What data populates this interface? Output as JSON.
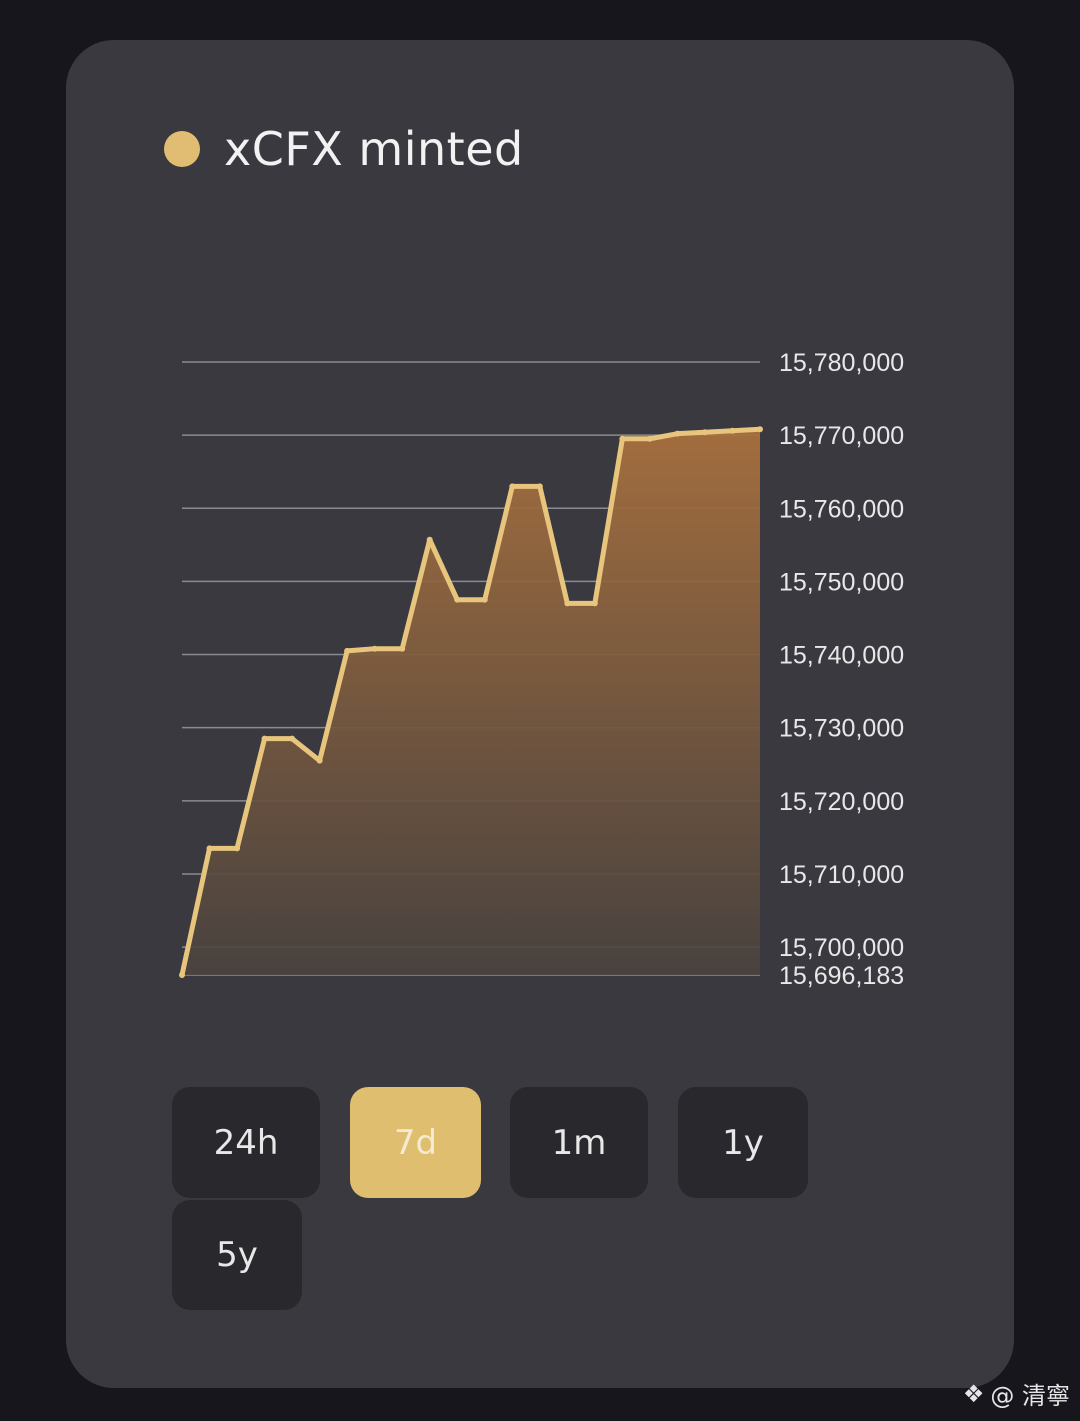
{
  "legend": {
    "label": "xCFX minted",
    "color": "#e0bd72"
  },
  "chart_data": {
    "type": "area",
    "series": [
      {
        "values": [
          15696183,
          15713500,
          15713500,
          15728500,
          15728500,
          15725500,
          15740500,
          15740800,
          15740800,
          15755700,
          15747500,
          15747500,
          15763000,
          15763000,
          15747000,
          15747000,
          15769500,
          15769500,
          15770200,
          15770400,
          15770600,
          15770800
        ]
      }
    ],
    "y_ticks": [
      {
        "value": 15780000,
        "label": "15,780,000"
      },
      {
        "value": 15770000,
        "label": "15,770,000"
      },
      {
        "value": 15760000,
        "label": "15,760,000"
      },
      {
        "value": 15750000,
        "label": "15,750,000"
      },
      {
        "value": 15740000,
        "label": "15,740,000"
      },
      {
        "value": 15730000,
        "label": "15,730,000"
      },
      {
        "value": 15720000,
        "label": "15,720,000"
      },
      {
        "value": 15710000,
        "label": "15,710,000"
      },
      {
        "value": 15700000,
        "label": "15,700,000"
      },
      {
        "value": 15696183,
        "label": "15,696,183"
      }
    ],
    "ylim": [
      15696183,
      15780000
    ],
    "grid": true,
    "line_color": "#e8c57c",
    "fill_top_color": "#a8703e",
    "fill_bottom_color": "#4a433f"
  },
  "range_buttons": [
    {
      "label": "24h",
      "active": false
    },
    {
      "label": "7d",
      "active": true
    },
    {
      "label": "1m",
      "active": false
    },
    {
      "label": "1y",
      "active": false
    },
    {
      "label": "5y",
      "active": false
    }
  ],
  "watermark": {
    "text": "@ 清寧"
  }
}
